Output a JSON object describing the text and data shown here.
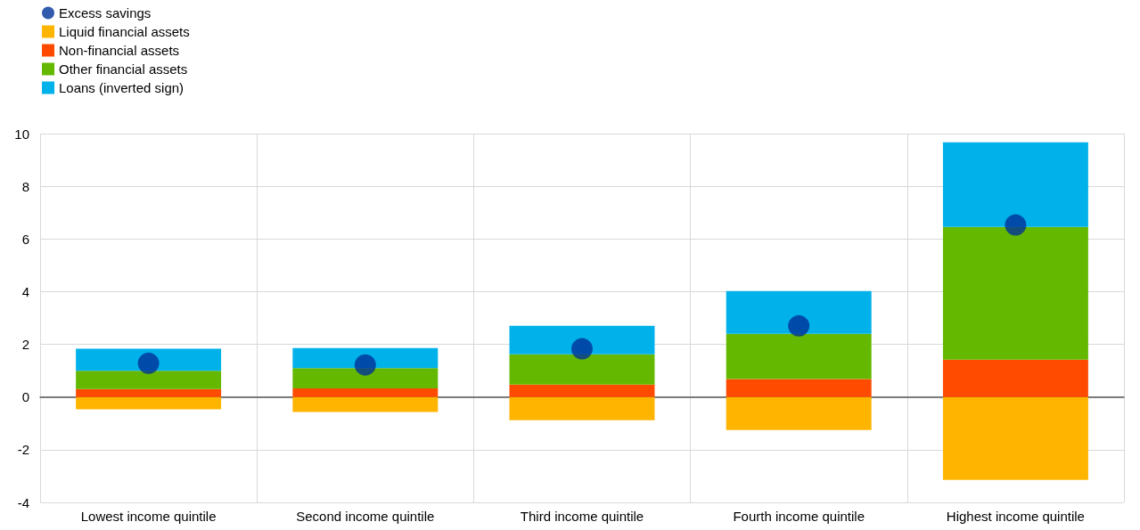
{
  "chart_data": {
    "type": "bar",
    "stacked": true,
    "categories": [
      "Lowest income quintile",
      "Second income quintile",
      "Third income quintile",
      "Fourth income quintile",
      "Highest income quintile"
    ],
    "series": [
      {
        "name": "Excess savings",
        "type": "scatter",
        "color": "#003299",
        "x": [
          "Lowest income quintile",
          "Second income quintile",
          "Third income quintile",
          "Fourth income quintile",
          "Highest income quintile"
        ],
        "values": [
          1.28,
          1.22,
          1.83,
          2.7,
          6.53
        ]
      },
      {
        "name": "Liquid financial assets",
        "color": "#ffb400",
        "values": [
          -0.47,
          -0.57,
          -0.88,
          -1.25,
          -3.15
        ]
      },
      {
        "name": "Non-financial assets",
        "color": "#ff4b00",
        "values": [
          0.3,
          0.33,
          0.47,
          0.68,
          1.42
        ]
      },
      {
        "name": "Other financial assets",
        "color": "#65b800",
        "values": [
          0.7,
          0.77,
          1.15,
          1.72,
          5.04
        ]
      },
      {
        "name": "Loans (inverted sign)",
        "color": "#00b1ea",
        "values": [
          0.83,
          0.76,
          1.08,
          1.62,
          3.21
        ]
      }
    ],
    "ylim": [
      -4,
      10
    ],
    "yticks": [
      -4,
      -2,
      0,
      2,
      4,
      6,
      8,
      10
    ],
    "grid": true,
    "legend": "top left",
    "marker": "circle"
  }
}
